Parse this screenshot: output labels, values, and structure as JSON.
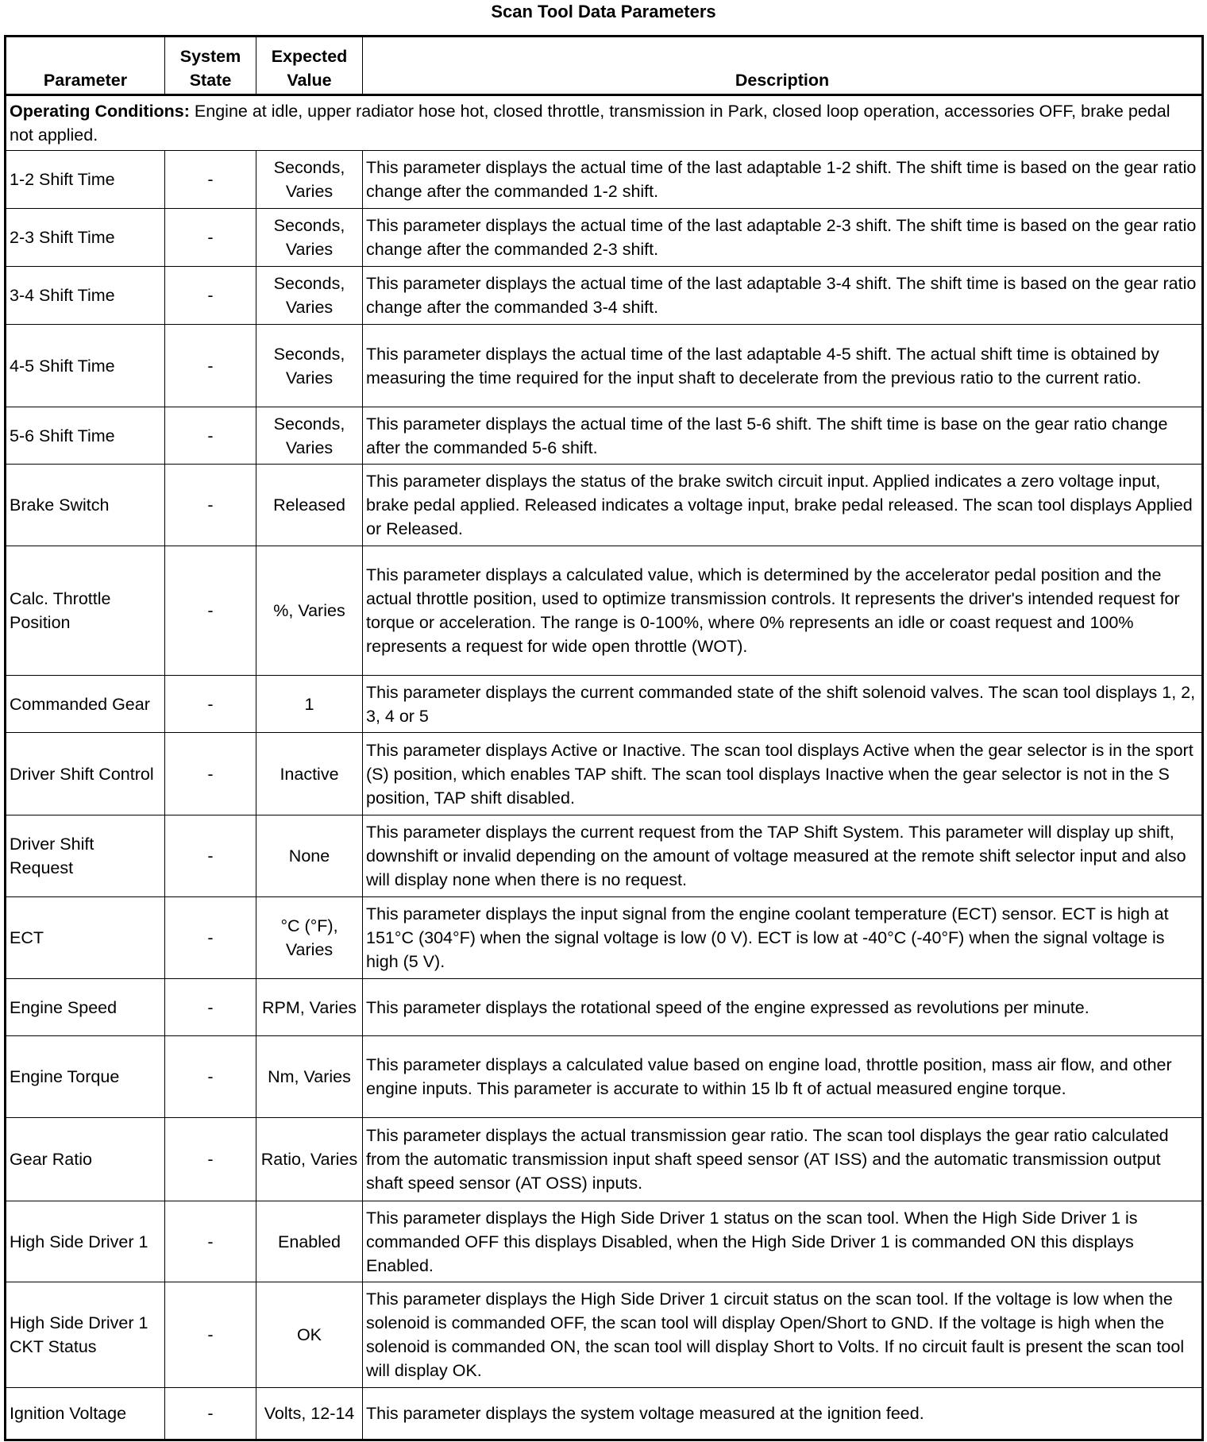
{
  "title": "Scan Tool Data Parameters",
  "headers": [
    "Parameter",
    "System State",
    "Expected Value",
    "Description"
  ],
  "operating_conditions": {
    "label": "Operating Conditions:",
    "text": " Engine at idle, upper radiator hose hot, closed throttle, transmission in Park, closed loop operation, accessories OFF, brake pedal not applied."
  },
  "rows": [
    {
      "parameter": "1-2 Shift Time",
      "state": "-",
      "value": "Seconds, Varies",
      "description": "This parameter displays the actual time of the last adaptable 1-2 shift. The shift time is based on the gear ratio change after the commanded 1-2 shift."
    },
    {
      "parameter": "2-3 Shift Time",
      "state": "-",
      "value": "Seconds, Varies",
      "description": "This parameter displays the actual time of the last adaptable 2-3 shift. The shift time is based on the gear ratio change after the commanded 2-3 shift."
    },
    {
      "parameter": "3-4 Shift Time",
      "state": "-",
      "value": "Seconds, Varies",
      "description": "This parameter displays the actual time of the last adaptable 3-4 shift. The shift time is based on the gear ratio change after the commanded 3-4 shift."
    },
    {
      "parameter": "4-5 Shift Time",
      "state": "-",
      "value": "Seconds, Varies",
      "description": "This parameter displays the actual time of the last adaptable 4-5 shift. The actual shift time is obtained by measuring the time required for the input shaft to decelerate from the previous ratio to the current ratio."
    },
    {
      "parameter": "5-6 Shift Time",
      "state": "-",
      "value": "Seconds, Varies",
      "description": "This parameter displays the actual time of the last 5-6 shift. The shift time is base on the gear ratio change after the commanded 5-6 shift."
    },
    {
      "parameter": "Brake Switch",
      "state": "-",
      "value": "Released",
      "description": "This parameter displays the status of the brake switch circuit input. Applied indicates a zero voltage input, brake pedal applied. Released indicates a voltage input, brake pedal released. The scan tool displays Applied or Released."
    },
    {
      "parameter": "Calc. Throttle Position",
      "state": "-",
      "value": "%, Varies",
      "description": "This parameter displays a calculated value, which is determined by the accelerator pedal position and the actual throttle position, used to optimize transmission controls. It represents the driver's intended request for torque or acceleration. The range is 0-100%, where 0% represents an idle or coast request and 100% represents a request for wide open throttle (WOT)."
    },
    {
      "parameter": "Commanded Gear",
      "state": "-",
      "value": "1",
      "description": "This parameter displays the current commanded state of the shift solenoid valves. The scan tool displays 1, 2, 3, 4 or 5"
    },
    {
      "parameter": "Driver Shift Control",
      "state": "-",
      "value": "Inactive",
      "description": "This parameter displays Active or Inactive. The scan tool displays Active when the gear selector is in the sport (S) position, which enables TAP shift. The scan tool displays Inactive when the gear selector is not in the S position, TAP shift disabled."
    },
    {
      "parameter": "Driver Shift Request",
      "state": "-",
      "value": "None",
      "description": "This parameter displays the current request from the TAP Shift System. This parameter will display up shift, downshift or invalid depending on the amount of voltage measured at the remote shift selector input and also will display none when there is no request."
    },
    {
      "parameter": "ECT",
      "state": "-",
      "value": "°C (°F), Varies",
      "description": "This parameter displays the input signal from the engine coolant temperature (ECT) sensor. ECT is high at 151°C (304°F) when the signal voltage is low (0 V). ECT is low at -40°C (-40°F) when the signal voltage is high (5 V)."
    },
    {
      "parameter": "Engine Speed",
      "state": "-",
      "value": "RPM, Varies",
      "description": "This parameter displays the rotational speed of the engine expressed as revolutions per minute."
    },
    {
      "parameter": "Engine Torque",
      "state": "-",
      "value": "Nm, Varies",
      "description": "This parameter displays a calculated value based on engine load, throttle position, mass air flow, and other engine inputs. This parameter is accurate to within 15 lb ft of actual measured engine torque."
    },
    {
      "parameter": "Gear Ratio",
      "state": "-",
      "value": "Ratio, Varies",
      "description": "This parameter displays the actual transmission gear ratio. The scan tool displays the gear ratio calculated from the automatic transmission input shaft speed sensor (AT ISS) and the automatic transmission output shaft speed sensor (AT OSS) inputs."
    },
    {
      "parameter": "High Side Driver 1",
      "state": "-",
      "value": "Enabled",
      "description": "This parameter displays the High Side Driver 1 status on the scan tool. When the High Side Driver 1 is commanded OFF this displays Disabled, when the High Side Driver 1 is commanded ON this displays Enabled."
    },
    {
      "parameter": "High Side Driver 1 CKT Status",
      "state": "-",
      "value": "OK",
      "description": "This parameter displays the High Side Driver 1 circuit status on the scan tool. If the voltage is low when the solenoid is commanded OFF, the scan tool will display Open/Short to GND. If the voltage is high when the solenoid is commanded ON, the scan tool will display Short to Volts. If no circuit fault is present the scan tool will display OK."
    },
    {
      "parameter": "Ignition Voltage",
      "state": "-",
      "value": "Volts, 12-14",
      "description": "This parameter displays the system voltage measured at the ignition feed."
    }
  ]
}
